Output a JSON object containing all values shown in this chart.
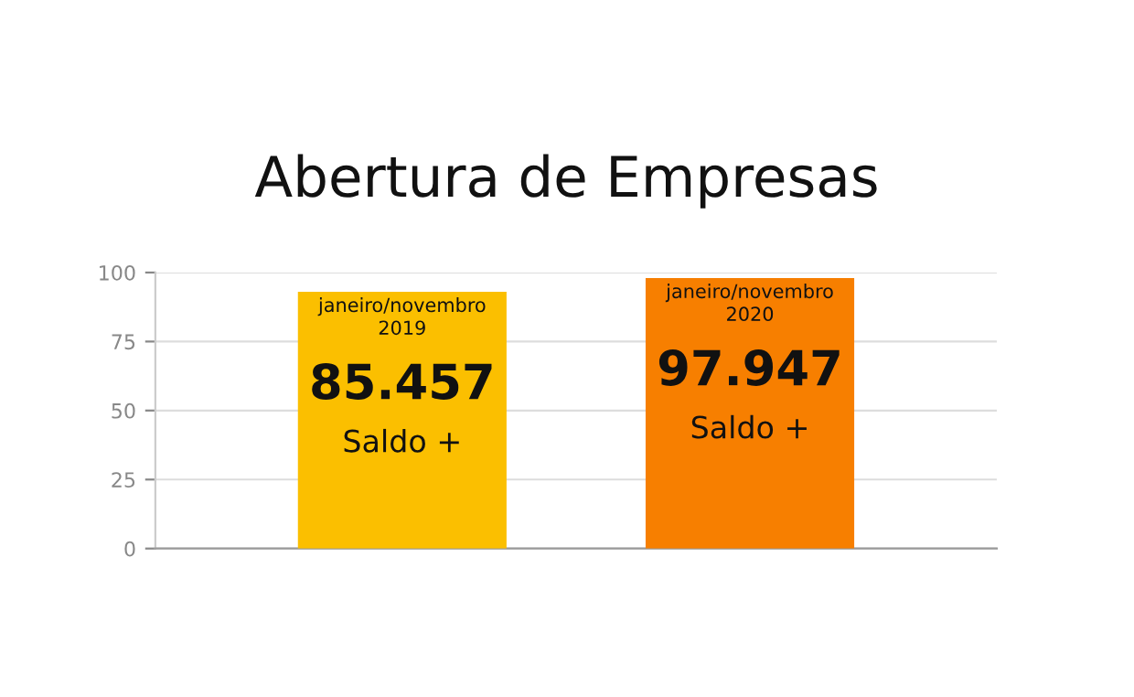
{
  "chart_data": {
    "type": "bar",
    "title": "Abertura de Empresas",
    "categories": [
      null,
      null
    ],
    "values": [
      93,
      98
    ],
    "colors": [
      "#fbbf00",
      "#f77f00"
    ],
    "ylim": [
      0,
      100
    ],
    "yticks": [
      0,
      25,
      50,
      75,
      100
    ],
    "grid": "y",
    "annotations": [
      "janeiro/novembro\n2019",
      "85.457",
      "Saldo +",
      "janeiro/novembro\n2020",
      "97.947",
      "Saldo +"
    ]
  }
}
